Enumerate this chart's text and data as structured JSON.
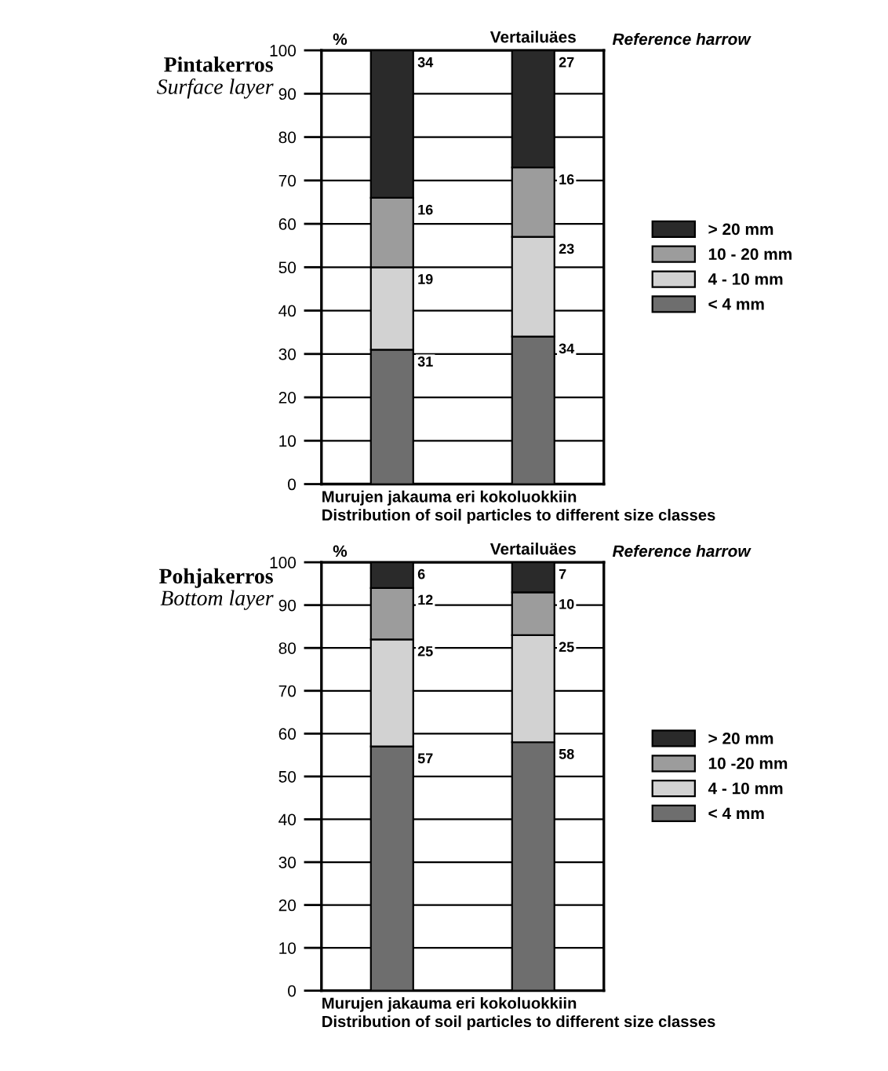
{
  "chart_data": [
    {
      "type": "bar",
      "title": "Pintakerros",
      "subtitle": "Surface layer",
      "ylabel": "%",
      "xlabel": "Murujen jakauma eri kokoluokkiin\nDistribution of soil particles to different size classes",
      "annotations": [
        "Reference harrow"
      ],
      "categories": [
        null,
        "Vertailuäes"
      ],
      "stacked": true,
      "data_labels": true,
      "grid": "y",
      "legend": "right",
      "ylim": [
        0,
        100
      ],
      "yticks": [
        0,
        10,
        20,
        30,
        40,
        50,
        60,
        70,
        80,
        90,
        100
      ],
      "series": [
        {
          "name": "< 4 mm",
          "color": "#6e6e6e",
          "values": [
            31,
            34
          ]
        },
        {
          "name": "4 - 10 mm",
          "color": "#d2d2d2",
          "values": [
            19,
            23
          ]
        },
        {
          "name": "10 - 20 mm",
          "color": "#9c9c9c",
          "values": [
            16,
            16
          ]
        },
        {
          "name": "> 20 mm",
          "color": "#2a2a2a",
          "values": [
            34,
            27
          ]
        }
      ]
    },
    {
      "type": "bar",
      "title": "Pohjakerros",
      "subtitle": "Bottom layer",
      "ylabel": "%",
      "xlabel": "Murujen jakauma eri kokoluokkiin\nDistribution of soil particles to different size classes",
      "annotations": [
        "Reference harrow"
      ],
      "categories": [
        null,
        "Vertailuäes"
      ],
      "stacked": true,
      "data_labels": true,
      "grid": "y",
      "legend": "right",
      "ylim": [
        0,
        100
      ],
      "yticks": [
        0,
        10,
        20,
        30,
        40,
        50,
        60,
        70,
        80,
        90,
        100
      ],
      "series": [
        {
          "name": "< 4 mm",
          "color": "#6e6e6e",
          "values": [
            57,
            58
          ]
        },
        {
          "name": "4 - 10 mm",
          "color": "#d2d2d2",
          "values": [
            25,
            25
          ]
        },
        {
          "name": "10 -20 mm",
          "color": "#9c9c9c",
          "values": [
            12,
            10
          ]
        },
        {
          "name": "> 20 mm",
          "color": "#2a2a2a",
          "values": [
            6,
            7
          ]
        }
      ]
    }
  ]
}
